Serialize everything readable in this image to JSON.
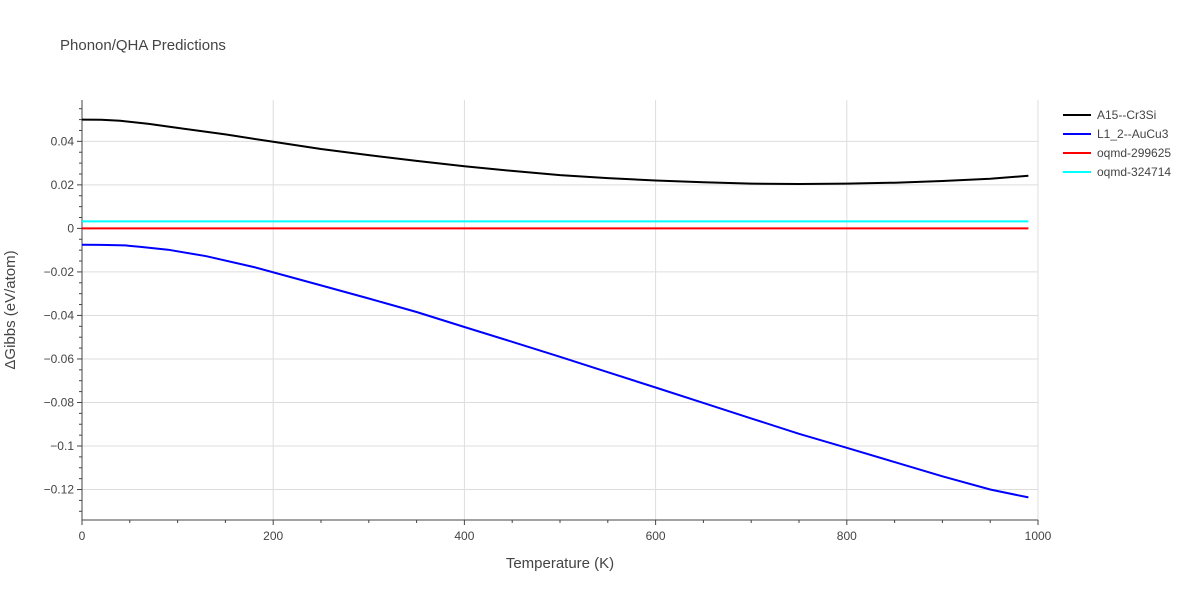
{
  "chart_data": {
    "type": "line",
    "title": "Phonon/QHA Predictions",
    "xlabel": "Temperature (K)",
    "ylabel": "ΔGibbs (eV/atom)",
    "xlim": [
      0,
      1000
    ],
    "ylim": [
      -0.134,
      0.059
    ],
    "x_ticks": [
      0,
      200,
      400,
      600,
      800,
      1000
    ],
    "x_tick_labels": [
      "0",
      "200",
      "400",
      "600",
      "800",
      "1000"
    ],
    "y_ticks": [
      0.04,
      0.02,
      0,
      -0.02,
      -0.04,
      -0.06,
      -0.08,
      -0.1,
      -0.12
    ],
    "y_tick_labels": [
      "0.04",
      "0.02",
      "0",
      "−0.02",
      "−0.04",
      "−0.06",
      "−0.08",
      "−0.1",
      "−0.12"
    ],
    "grid": true,
    "legend_position": "top-right",
    "series": [
      {
        "name": "A15--Cr3Si",
        "color": "#000000",
        "x": [
          0,
          20,
          40,
          70,
          100,
          150,
          200,
          250,
          300,
          350,
          400,
          450,
          500,
          550,
          600,
          650,
          700,
          750,
          800,
          850,
          900,
          950,
          990
        ],
        "y": [
          0.05,
          0.0499,
          0.0495,
          0.048,
          0.0462,
          0.0432,
          0.0398,
          0.0365,
          0.0337,
          0.031,
          0.0286,
          0.0264,
          0.0245,
          0.0231,
          0.022,
          0.0212,
          0.0206,
          0.0204,
          0.0206,
          0.021,
          0.0218,
          0.0228,
          0.0242
        ]
      },
      {
        "name": "L1_2--AuCu3",
        "color": "#0000ff",
        "x": [
          0,
          20,
          45,
          60,
          90,
          130,
          180,
          250,
          300,
          350,
          400,
          450,
          500,
          550,
          600,
          650,
          700,
          750,
          800,
          850,
          900,
          950,
          990
        ],
        "y": [
          -0.0075,
          -0.0076,
          -0.0078,
          -0.0084,
          -0.0098,
          -0.0128,
          -0.0178,
          -0.0262,
          -0.0322,
          -0.0384,
          -0.0453,
          -0.0521,
          -0.059,
          -0.0661,
          -0.0731,
          -0.0802,
          -0.0873,
          -0.0944,
          -0.1008,
          -0.1074,
          -0.1139,
          -0.12,
          -0.1236
        ]
      },
      {
        "name": "oqmd-299625",
        "color": "#ff0000",
        "x": [
          0,
          990
        ],
        "y": [
          0,
          0
        ]
      },
      {
        "name": "oqmd-324714",
        "color": "#00ffff",
        "x": [
          0,
          990
        ],
        "y": [
          0.0032,
          0.0032
        ]
      }
    ]
  }
}
